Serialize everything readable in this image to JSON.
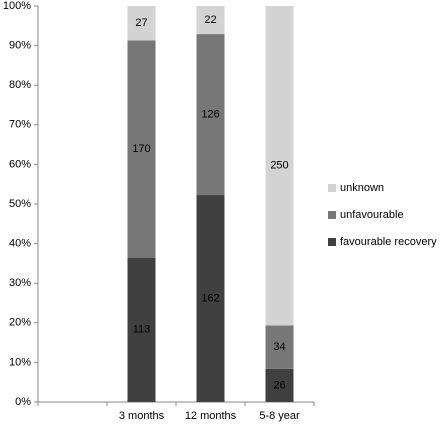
{
  "chart_data": {
    "type": "bar",
    "stacking": "percent",
    "categories": [
      null,
      "3 months",
      "12 months",
      "5-8 year"
    ],
    "series": [
      {
        "name": "favourable recovery",
        "color": "#404040",
        "values": [
          null,
          113,
          162,
          26
        ]
      },
      {
        "name": "unfavourable",
        "color": "#777777",
        "values": [
          null,
          170,
          126,
          34
        ]
      },
      {
        "name": "unknown",
        "color": "#d3d3d3",
        "values": [
          null,
          27,
          22,
          250
        ]
      }
    ],
    "ylim": [
      0,
      100
    ],
    "yticks": [
      {
        "value": 0,
        "label": "0%"
      },
      {
        "value": 10,
        "label": "10%"
      },
      {
        "value": 20,
        "label": "20%"
      },
      {
        "value": 30,
        "label": "30%"
      },
      {
        "value": 40,
        "label": "40%"
      },
      {
        "value": 50,
        "label": "50%"
      },
      {
        "value": 60,
        "label": "60%"
      },
      {
        "value": 70,
        "label": "70%"
      },
      {
        "value": 80,
        "label": "80%"
      },
      {
        "value": 90,
        "label": "90%"
      },
      {
        "value": 100,
        "label": "100%"
      }
    ],
    "grid": false,
    "legend": "right"
  }
}
